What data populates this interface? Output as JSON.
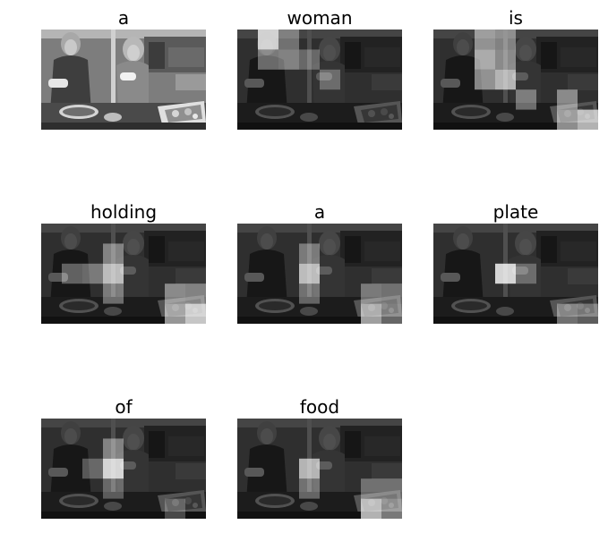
{
  "figure": {
    "panels": [
      {
        "word": "a",
        "attention": []
      },
      {
        "word": "woman",
        "attention": [
          [
            0,
            1,
            0.95
          ],
          [
            1,
            1,
            0.45
          ],
          [
            1,
            2,
            0.5
          ],
          [
            0,
            2,
            0.4
          ],
          [
            2,
            4,
            0.35
          ],
          [
            1,
            3,
            0.35
          ]
        ]
      },
      {
        "word": "is",
        "attention": [
          [
            0,
            2,
            0.6
          ],
          [
            0,
            3,
            0.5
          ],
          [
            1,
            2,
            0.75
          ],
          [
            1,
            3,
            0.55
          ],
          [
            2,
            2,
            0.6
          ],
          [
            2,
            3,
            0.8
          ],
          [
            3,
            6,
            0.55
          ],
          [
            4,
            7,
            0.85
          ],
          [
            4,
            6,
            0.65
          ],
          [
            3,
            4,
            0.45
          ]
        ]
      },
      {
        "word": "holding",
        "attention": [
          [
            2,
            3,
            0.85
          ],
          [
            2,
            2,
            0.45
          ],
          [
            1,
            3,
            0.5
          ],
          [
            3,
            3,
            0.45
          ],
          [
            3,
            6,
            0.55
          ],
          [
            4,
            6,
            0.7
          ],
          [
            4,
            7,
            0.95
          ],
          [
            3,
            7,
            0.5
          ],
          [
            2,
            1,
            0.4
          ]
        ]
      },
      {
        "word": "a",
        "attention": [
          [
            2,
            3,
            0.85
          ],
          [
            1,
            3,
            0.45
          ],
          [
            3,
            3,
            0.4
          ],
          [
            4,
            6,
            0.75
          ],
          [
            4,
            7,
            0.45
          ],
          [
            3,
            6,
            0.45
          ],
          [
            3,
            7,
            0.4
          ]
        ]
      },
      {
        "word": "plate",
        "attention": [
          [
            2,
            3,
            1.0
          ],
          [
            2,
            4,
            0.35
          ],
          [
            4,
            6,
            0.5
          ],
          [
            4,
            7,
            0.4
          ]
        ]
      },
      {
        "word": "of",
        "attention": [
          [
            2,
            3,
            1.0
          ],
          [
            1,
            3,
            0.5
          ],
          [
            2,
            2,
            0.35
          ],
          [
            3,
            3,
            0.35
          ],
          [
            4,
            6,
            0.3
          ]
        ]
      },
      {
        "word": "food",
        "attention": [
          [
            2,
            3,
            0.8
          ],
          [
            3,
            3,
            0.4
          ],
          [
            4,
            6,
            0.85
          ],
          [
            4,
            7,
            0.55
          ],
          [
            3,
            6,
            0.4
          ],
          [
            3,
            7,
            0.4
          ]
        ]
      }
    ]
  }
}
